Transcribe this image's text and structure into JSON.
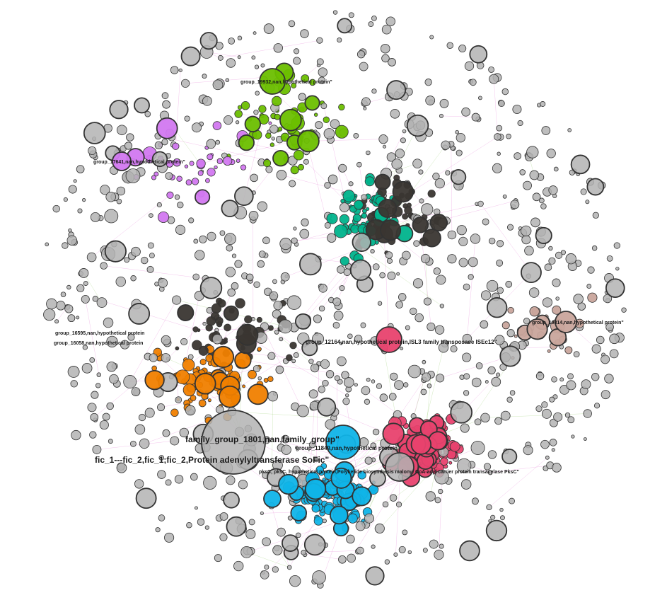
{
  "graph": {
    "type": "network",
    "colors": {
      "default": "#b3b3b3",
      "orange": "#f08000",
      "dark": "#3a3632",
      "green": "#6cbf00",
      "purple": "#d278f0",
      "teal": "#00b38c",
      "pink": "#e8426e",
      "blue": "#10b4e8",
      "brown": "#c9a59c",
      "edge_pink": "#e070d0",
      "edge_green": "#8cc860"
    },
    "labels": [
      {
        "text": "family_group_1801,nan,family_group\""
      },
      {
        "text": "fic_1---fic_2,fic_1;fic_2,Protein adenylyltransferase SoFic\""
      },
      {
        "text": "group_11849,nan,hypothetical protein"
      },
      {
        "text": "pksC, pksC, hypothetical protein,Polyketide biosynthesis malonyl CoA-acyl carrier protein transacylase PksC\""
      },
      {
        "text": "group_12164,nan,hypothetical protein,ISL3 family transposase ISEc12\""
      },
      {
        "text": "group_16595,nan,hypothetical protein"
      },
      {
        "text": "group_16058,nan,hypothetical protein"
      },
      {
        "text": "group_19932,nan,hypothetical protein\""
      },
      {
        "text": "group_17641,nan,hypothetical protein\""
      },
      {
        "text": "group_19814,nan,hypothetical protein\""
      }
    ]
  }
}
